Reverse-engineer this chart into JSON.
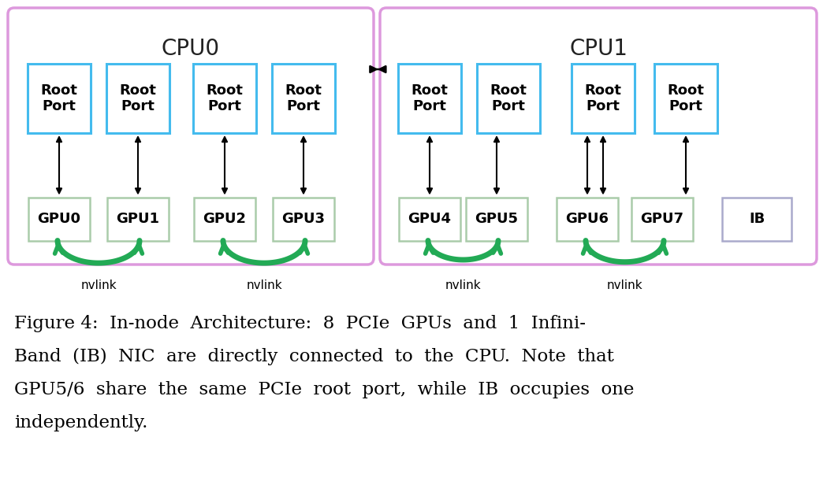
{
  "fig_width": 10.44,
  "fig_height": 6.16,
  "bg_color": "#ffffff",
  "cpu_box_color": "#dd99dd",
  "root_port_box_color": "#44bbee",
  "gpu_box_color": "#aaccaa",
  "ib_box_color": "#aaaacc",
  "cpu0_label": "CPU0",
  "cpu1_label": "CPU1",
  "root_port_label": "Root\nPort",
  "nvlink_label": "nvlink",
  "caption_line1": "Figure 4:  In-node  Architecture:  8  PCIe  GPUs  and  1  Infini-",
  "caption_line2": "Band  (IB)  NIC  are  directly  connected  to  the  CPU.  Note  that",
  "caption_line3": "GPU5/6  share  the  same  PCIe  root  port,  while  IB  occupies  one",
  "caption_line4": "independently.",
  "arrow_color": "#000000",
  "nvlink_color": "#22aa55",
  "text_color": "#000000"
}
